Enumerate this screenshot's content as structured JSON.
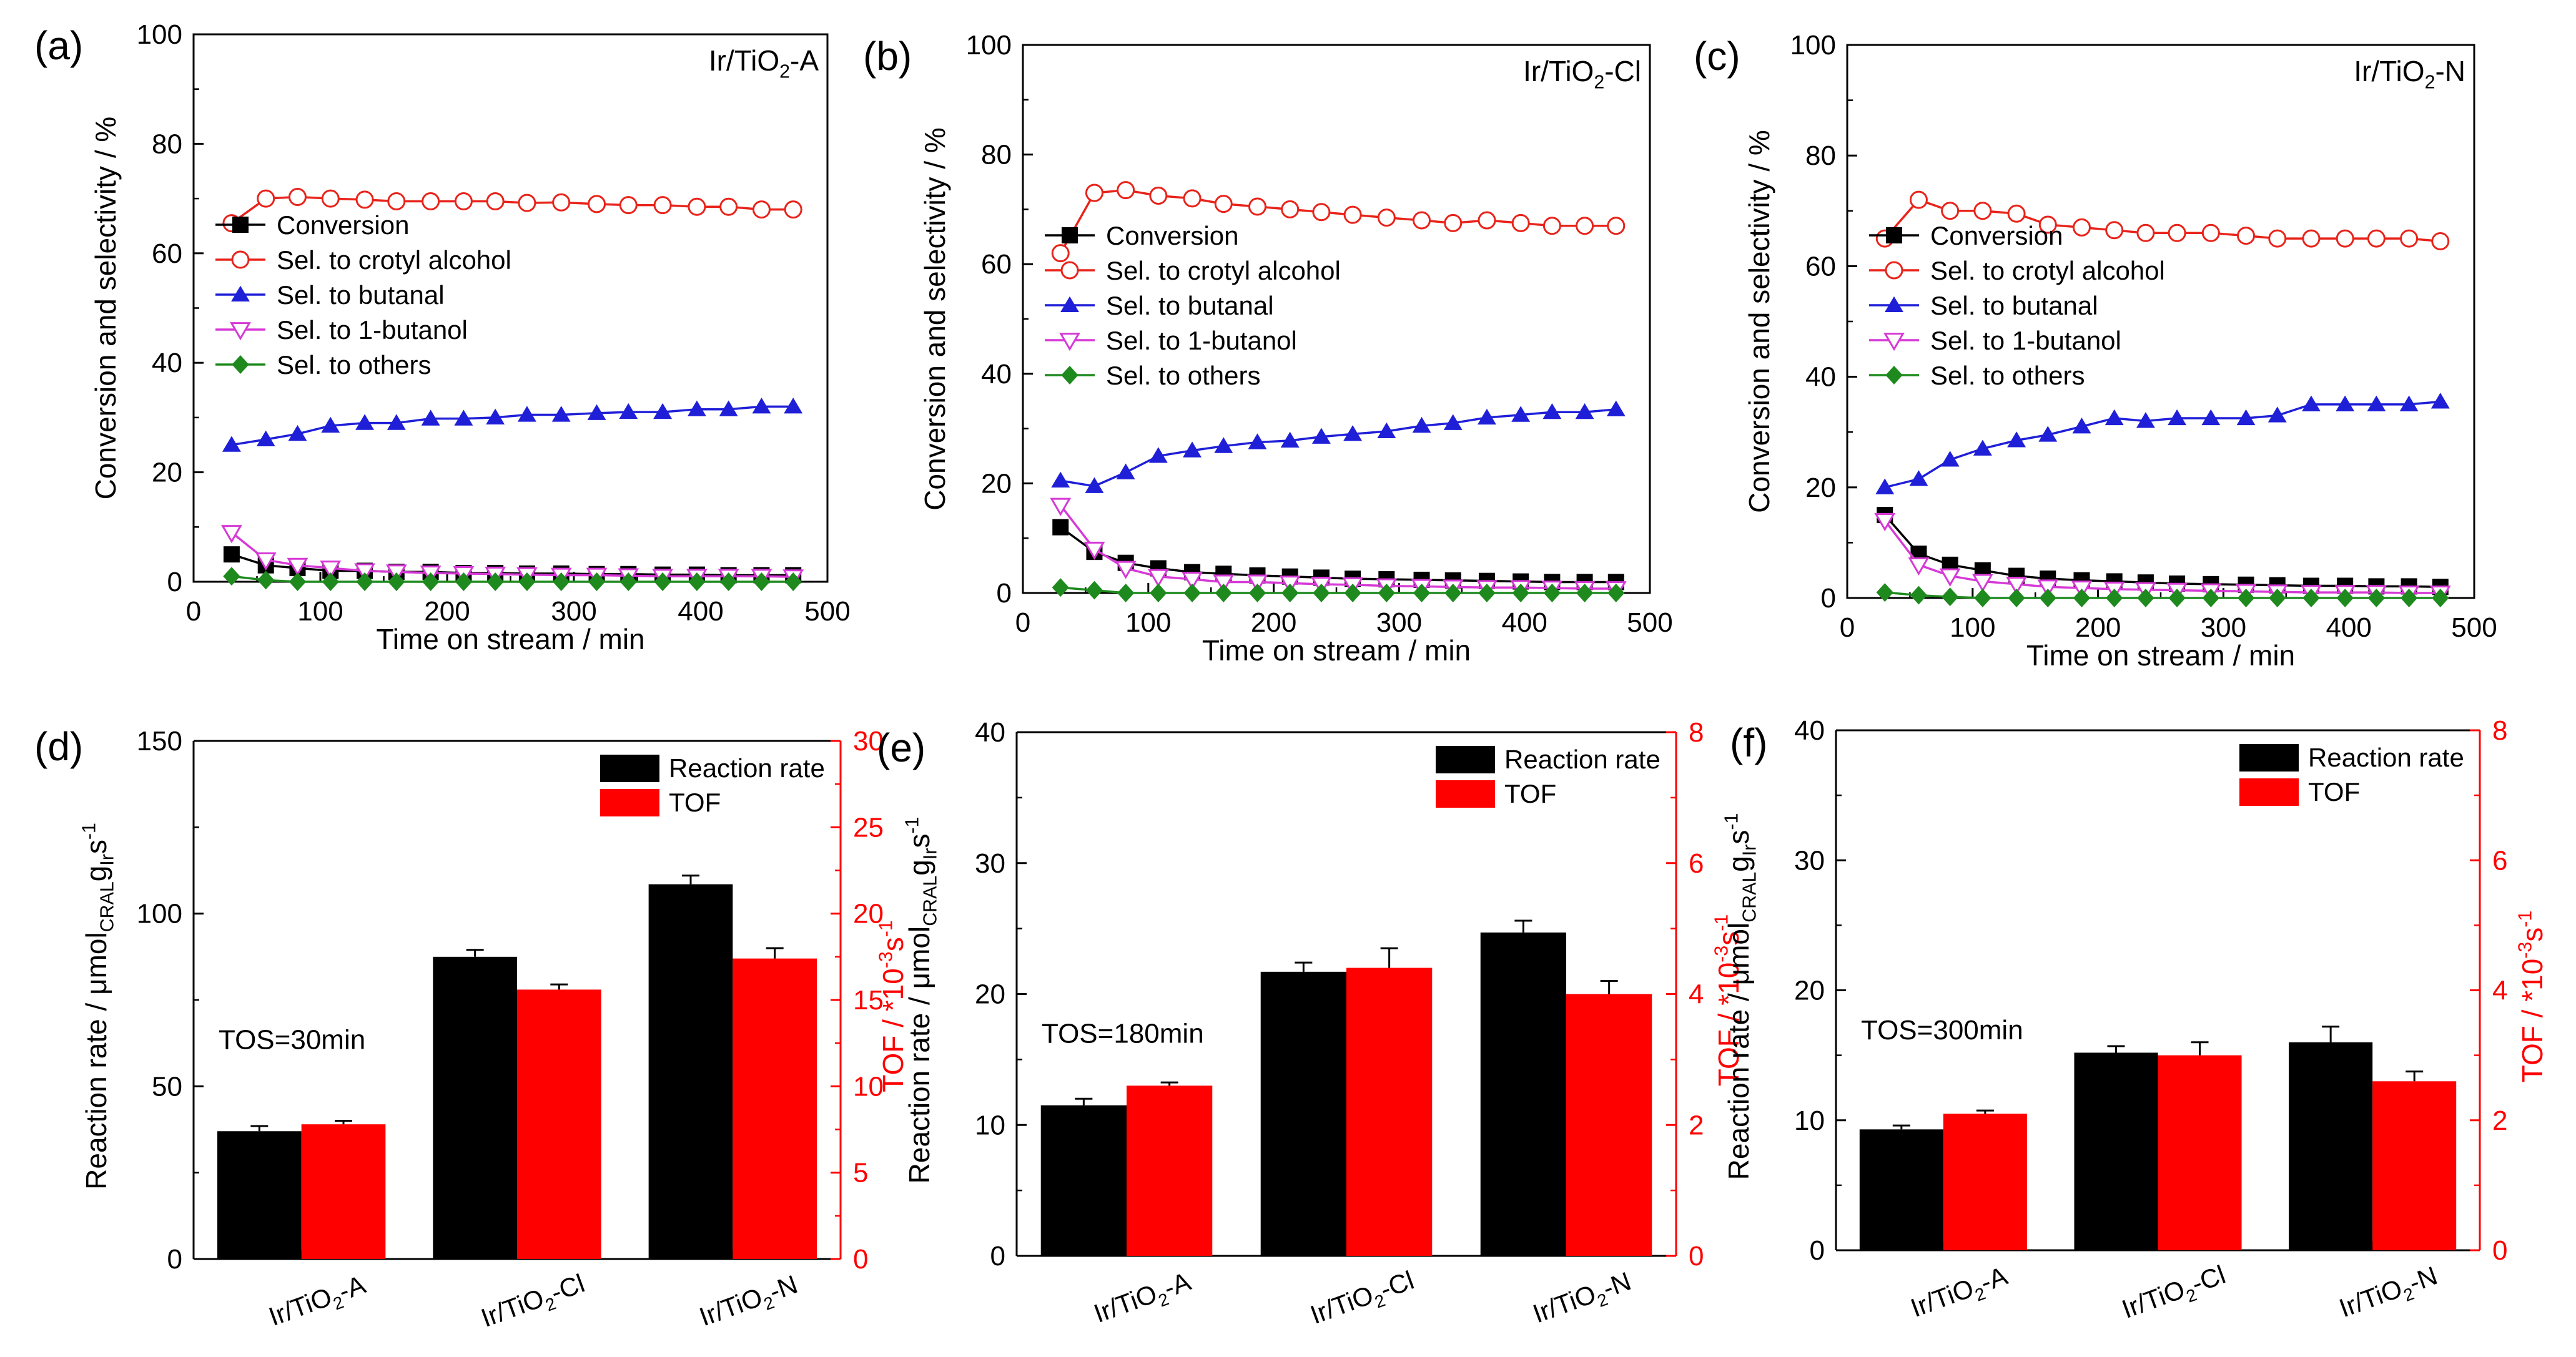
{
  "chart_data": [
    {
      "panel": "a",
      "panel_label": "(a)",
      "type": "line",
      "catalyst": [
        "Ir/TiO",
        "2",
        "-A"
      ],
      "xlabel": "Time on stream / min",
      "ylabel": "Conversion and selectivity / %",
      "xlim": [
        0,
        500
      ],
      "ylim": [
        0,
        100
      ],
      "xticks": [
        0,
        100,
        200,
        300,
        400,
        500
      ],
      "yticks": [
        0,
        20,
        40,
        60,
        80,
        100
      ],
      "legend_position": "center-left",
      "x": [
        30,
        57,
        82,
        108,
        135,
        160,
        187,
        213,
        238,
        263,
        290,
        318,
        343,
        370,
        397,
        422,
        448,
        473
      ],
      "series": [
        {
          "name": "Conversion",
          "marker": "square",
          "color": "#000000",
          "values": [
            5,
            3,
            2.5,
            2,
            2,
            1.8,
            1.8,
            1.6,
            1.6,
            1.5,
            1.5,
            1.4,
            1.4,
            1.3,
            1.3,
            1.2,
            1.2,
            1.2
          ]
        },
        {
          "name": "Sel. to crotyl alcohol",
          "marker": "open-circle",
          "color": "#e8231a",
          "values": [
            65.5,
            70,
            70.3,
            70,
            69.8,
            69.5,
            69.5,
            69.5,
            69.5,
            69.2,
            69.3,
            69,
            68.8,
            68.8,
            68.5,
            68.5,
            68,
            68
          ]
        },
        {
          "name": "Sel. to butanal",
          "marker": "triangle",
          "color": "#1f1fd8",
          "values": [
            25,
            26,
            27,
            28.5,
            29,
            29,
            29.8,
            29.8,
            30,
            30.5,
            30.5,
            30.8,
            31,
            31,
            31.5,
            31.5,
            32,
            32
          ]
        },
        {
          "name": "Sel. to 1-butanol",
          "marker": "open-triangle-down",
          "color": "#d639d6",
          "values": [
            9,
            4,
            3,
            2.5,
            2,
            1.8,
            1.6,
            1.5,
            1.4,
            1.3,
            1.2,
            1.2,
            1.1,
            1,
            1,
            1,
            1,
            0.9
          ]
        },
        {
          "name": "Sel. to others",
          "marker": "diamond",
          "color": "#1e8a1e",
          "values": [
            1,
            0.3,
            0,
            0,
            0,
            0,
            0,
            0,
            0,
            0,
            0,
            0,
            0,
            0,
            0,
            0,
            0,
            0
          ]
        }
      ]
    },
    {
      "panel": "b",
      "panel_label": "(b)",
      "type": "line",
      "catalyst": [
        "Ir/TiO",
        "2",
        "-Cl"
      ],
      "xlabel": "Time on stream / min",
      "ylabel": "Conversion and selectivity / %",
      "xlim": [
        0,
        500
      ],
      "ylim": [
        0,
        100
      ],
      "xticks": [
        0,
        100,
        200,
        300,
        400,
        500
      ],
      "yticks": [
        0,
        20,
        40,
        60,
        80,
        100
      ],
      "legend_position": "center-left",
      "x": [
        30,
        57,
        82,
        108,
        135,
        160,
        187,
        213,
        238,
        263,
        290,
        318,
        343,
        370,
        397,
        422,
        448,
        473
      ],
      "series": [
        {
          "name": "Conversion",
          "marker": "square",
          "color": "#000000",
          "values": [
            12,
            7.5,
            5.5,
            4.5,
            3.8,
            3.5,
            3.2,
            3,
            2.8,
            2.6,
            2.5,
            2.4,
            2.3,
            2.2,
            2.1,
            2,
            2,
            2
          ]
        },
        {
          "name": "Sel. to crotyl alcohol",
          "marker": "open-circle",
          "color": "#e8231a",
          "values": [
            62,
            73,
            73.5,
            72.5,
            72,
            71,
            70.5,
            70,
            69.5,
            69,
            68.5,
            68,
            67.5,
            68,
            67.5,
            67,
            67,
            67
          ]
        },
        {
          "name": "Sel. to butanal",
          "marker": "triangle",
          "color": "#1f1fd8",
          "values": [
            20.5,
            19.5,
            22,
            25,
            26,
            26.8,
            27.5,
            27.8,
            28.5,
            29,
            29.5,
            30.5,
            31,
            32,
            32.5,
            33,
            33,
            33.5
          ]
        },
        {
          "name": "Sel. to 1-butanol",
          "marker": "open-triangle-down",
          "color": "#d639d6",
          "values": [
            16,
            8,
            4.5,
            3,
            2.5,
            2,
            2,
            1.8,
            1.6,
            1.5,
            1.3,
            1.2,
            1.1,
            1,
            1,
            0.9,
            0.8,
            0.8
          ]
        },
        {
          "name": "Sel. to others",
          "marker": "diamond",
          "color": "#1e8a1e",
          "values": [
            1,
            0.5,
            0,
            0,
            0,
            0,
            0,
            0,
            0,
            0,
            0,
            0,
            0,
            0,
            0,
            0,
            0,
            0
          ]
        }
      ]
    },
    {
      "panel": "c",
      "panel_label": "(c)",
      "type": "line",
      "catalyst": [
        "Ir/TiO",
        "2",
        "-N"
      ],
      "xlabel": "Time on stream / min",
      "ylabel": "Conversion and selectivity / %",
      "xlim": [
        0,
        500
      ],
      "ylim": [
        0,
        100
      ],
      "xticks": [
        0,
        100,
        200,
        300,
        400,
        500
      ],
      "yticks": [
        0,
        20,
        40,
        60,
        80,
        100
      ],
      "legend_position": "center-left",
      "x": [
        30,
        57,
        82,
        108,
        135,
        160,
        187,
        213,
        238,
        263,
        290,
        318,
        343,
        370,
        397,
        422,
        448,
        473
      ],
      "series": [
        {
          "name": "Conversion",
          "marker": "square",
          "color": "#000000",
          "values": [
            15,
            8,
            6,
            5,
            4,
            3.5,
            3.2,
            3,
            2.8,
            2.6,
            2.5,
            2.4,
            2.3,
            2.2,
            2.2,
            2.1,
            2.1,
            2
          ]
        },
        {
          "name": "Sel. to crotyl alcohol",
          "marker": "open-circle",
          "color": "#e8231a",
          "values": [
            65,
            72,
            70,
            70,
            69.5,
            67.5,
            67,
            66.5,
            66,
            66,
            66,
            65.5,
            65,
            65,
            65,
            65,
            65,
            64.5
          ]
        },
        {
          "name": "Sel. to butanal",
          "marker": "triangle",
          "color": "#1f1fd8",
          "values": [
            20,
            21.5,
            25,
            27,
            28.5,
            29.5,
            31,
            32.5,
            32,
            32.5,
            32.5,
            32.5,
            33,
            35,
            35,
            35,
            35,
            35.5
          ]
        },
        {
          "name": "Sel. to 1-butanol",
          "marker": "open-triangle-down",
          "color": "#d639d6",
          "values": [
            14,
            6,
            4,
            3,
            2.5,
            2,
            1.8,
            1.6,
            1.5,
            1.4,
            1.3,
            1.2,
            1.1,
            1,
            1,
            1,
            0.9,
            0.9
          ]
        },
        {
          "name": "Sel. to others",
          "marker": "diamond",
          "color": "#1e8a1e",
          "values": [
            1,
            0.5,
            0.2,
            0,
            0,
            0,
            0,
            0,
            0,
            0,
            0,
            0,
            0,
            0,
            0,
            0,
            0,
            0
          ]
        }
      ]
    },
    {
      "panel": "d",
      "panel_label": "(d)",
      "type": "bar",
      "categories": [
        [
          "Ir/TiO",
          "2",
          "-A"
        ],
        [
          "Ir/TiO",
          "2",
          "-Cl"
        ],
        [
          "Ir/TiO",
          "2",
          "-N"
        ]
      ],
      "ylabel_left": [
        "Reaction rate / μmol",
        "CRAL",
        "g",
        "Ir",
        "s",
        "-1"
      ],
      "ylabel_right": [
        "TOF / *10",
        "-3",
        "s",
        "-1"
      ],
      "left_ylim": [
        0,
        150
      ],
      "left_yticks": [
        0,
        50,
        100,
        150
      ],
      "right_ylim": [
        0,
        30
      ],
      "right_yticks": [
        0,
        5,
        10,
        15,
        20,
        25,
        30
      ],
      "annotation": "TOS=30min",
      "legend_position": "top-right",
      "series": [
        {
          "name": "Reaction rate",
          "axis": "left",
          "color": "#000000",
          "values": [
            37,
            87.5,
            108.5
          ],
          "errors": [
            1.5,
            2.0,
            2.5
          ]
        },
        {
          "name": "TOF",
          "axis": "right",
          "color": "#ff0000",
          "values": [
            7.8,
            15.6,
            17.4
          ],
          "errors": [
            0.2,
            0.3,
            0.6
          ]
        }
      ]
    },
    {
      "panel": "e",
      "panel_label": "(e)",
      "type": "bar",
      "categories": [
        [
          "Ir/TiO",
          "2",
          "-A"
        ],
        [
          "Ir/TiO",
          "2",
          "-Cl"
        ],
        [
          "Ir/TiO",
          "2",
          "-N"
        ]
      ],
      "ylabel_left": [
        "Reaction rate / μmol",
        "CRAL",
        "g",
        "Ir",
        "s",
        "-1"
      ],
      "ylabel_right": [
        "TOF / *10",
        "-3",
        "s",
        "-1"
      ],
      "left_ylim": [
        0,
        40
      ],
      "left_yticks": [
        0,
        10,
        20,
        30,
        40
      ],
      "right_ylim": [
        0,
        8
      ],
      "right_yticks": [
        0,
        2,
        4,
        6,
        8
      ],
      "annotation": "TOS=180min",
      "legend_position": "top-right",
      "series": [
        {
          "name": "Reaction rate",
          "axis": "left",
          "color": "#000000",
          "values": [
            11.5,
            21.7,
            24.7
          ],
          "errors": [
            0.5,
            0.7,
            0.9
          ]
        },
        {
          "name": "TOF",
          "axis": "right",
          "color": "#ff0000",
          "values": [
            2.6,
            4.4,
            4.0
          ],
          "errors": [
            0.05,
            0.3,
            0.2
          ]
        }
      ]
    },
    {
      "panel": "f",
      "panel_label": "(f)",
      "type": "bar",
      "categories": [
        [
          "Ir/TiO",
          "2",
          "-A"
        ],
        [
          "Ir/TiO",
          "2",
          "-Cl"
        ],
        [
          "Ir/TiO",
          "2",
          "-N"
        ]
      ],
      "ylabel_left": [
        "Reaction rate / μmol",
        "CRAL",
        "g",
        "Ir",
        "s",
        "-1"
      ],
      "ylabel_right": [
        "TOF / *10",
        "-3",
        "s",
        "-1"
      ],
      "left_ylim": [
        0,
        40
      ],
      "left_yticks": [
        0,
        10,
        20,
        30,
        40
      ],
      "right_ylim": [
        0,
        8
      ],
      "right_yticks": [
        0,
        2,
        4,
        6,
        8
      ],
      "annotation": "TOS=300min",
      "legend_position": "top-right",
      "series": [
        {
          "name": "Reaction rate",
          "axis": "left",
          "color": "#000000",
          "values": [
            9.3,
            15.2,
            16.0
          ],
          "errors": [
            0.3,
            0.5,
            1.2
          ]
        },
        {
          "name": "TOF",
          "axis": "right",
          "color": "#ff0000",
          "values": [
            2.1,
            3.0,
            2.6
          ],
          "errors": [
            0.05,
            0.2,
            0.15
          ]
        }
      ]
    }
  ]
}
